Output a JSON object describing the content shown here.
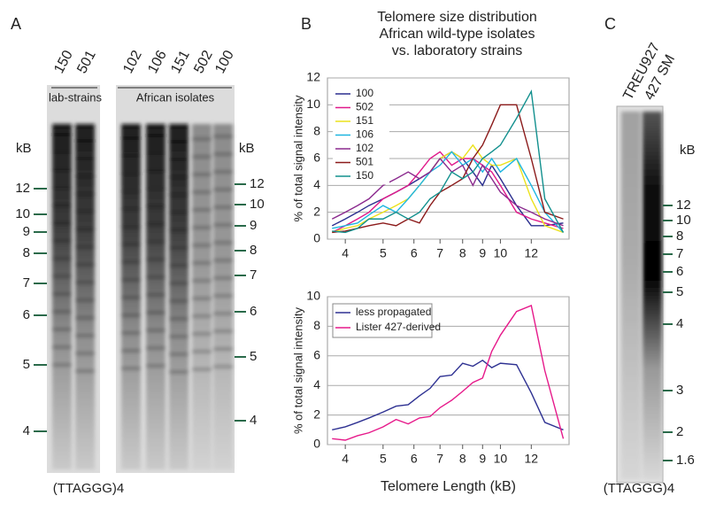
{
  "panel_labels": [
    "A",
    "B",
    "C"
  ],
  "gel_a": {
    "lanes": [
      "150",
      "501",
      "102",
      "106",
      "151",
      "502",
      "100"
    ],
    "groups": [
      "lab-strains",
      "African isolates"
    ],
    "unit_left": "kB",
    "unit_right": "kB",
    "markers_left": [
      12,
      10,
      9,
      8,
      7,
      6,
      5,
      4
    ],
    "markers_right": [
      12,
      10,
      9,
      8,
      7,
      6,
      5,
      4
    ],
    "probe": "(TTAGGG)4"
  },
  "gel_c": {
    "lanes": [
      "TREU927",
      "427 SM"
    ],
    "unit": "kB",
    "markers": [
      12,
      10,
      8,
      7,
      6,
      5,
      4,
      3,
      2,
      1.6
    ],
    "probe": "(TTAGGG)4"
  },
  "chart_data": [
    {
      "type": "line",
      "title": [
        "Telomere size distribution",
        "African wild-type isolates",
        "vs. laboratory strains"
      ],
      "y_label": "% of total signal intensity",
      "x": [
        3.7,
        4,
        4.3,
        4.6,
        5,
        5.4,
        5.8,
        6.2,
        6.6,
        7,
        7.5,
        8,
        8.5,
        9,
        9.5,
        10,
        11,
        12,
        13,
        14.5
      ],
      "xlim": [
        3.6,
        15
      ],
      "xscale": "log",
      "xticks": [
        4,
        5,
        6,
        7,
        8,
        9,
        10,
        12
      ],
      "ylim": [
        0,
        12
      ],
      "yticks": [
        0,
        2,
        4,
        6,
        8,
        10,
        12
      ],
      "grid": true,
      "legend": "upper left",
      "series": [
        {
          "name": "100",
          "color": "#2b2f8f",
          "values": [
            1,
            1.5,
            2,
            2.5,
            3,
            3.5,
            4,
            4.5,
            5,
            6,
            6.5,
            6,
            5,
            4,
            5.5,
            4.5,
            2.5,
            1,
            1,
            1.2
          ]
        },
        {
          "name": "502",
          "color": "#e0198a",
          "values": [
            0.5,
            1,
            1.5,
            2,
            3,
            3.5,
            4,
            5,
            6,
            6.5,
            5.5,
            6,
            6,
            5.5,
            5,
            4,
            2,
            1.5,
            1.2,
            0.8
          ]
        },
        {
          "name": "151",
          "color": "#ece21c",
          "values": [
            0.5,
            0.8,
            1,
            1.5,
            2,
            2.5,
            3,
            4,
            5,
            6,
            6.5,
            6,
            7,
            6,
            5.5,
            5.5,
            6,
            3,
            1,
            0.5
          ]
        },
        {
          "name": "106",
          "color": "#1fb6e0",
          "values": [
            0.8,
            1,
            1.2,
            1.8,
            2.5,
            2,
            3,
            4,
            5,
            5.5,
            6.5,
            5.5,
            6,
            5,
            6,
            5,
            6,
            4,
            2,
            0.5
          ]
        },
        {
          "name": "102",
          "color": "#8b2a8e",
          "values": [
            1.5,
            2,
            2.5,
            3,
            4,
            4.5,
            5,
            4.5,
            5,
            6,
            5,
            5.5,
            4,
            5.5,
            4.5,
            3.5,
            2.5,
            2,
            1.5,
            1
          ]
        },
        {
          "name": "501",
          "color": "#8b1a1a",
          "values": [
            0.5,
            0.6,
            0.8,
            1,
            1.2,
            1,
            1.5,
            1.2,
            2.5,
            3.5,
            4,
            4.5,
            6,
            7,
            8.5,
            10,
            10,
            6,
            2,
            1.5
          ]
        },
        {
          "name": "150",
          "color": "#12908e",
          "values": [
            0.6,
            0.5,
            0.8,
            1.5,
            1.5,
            2,
            1.5,
            2,
            3,
            3.5,
            5,
            4.5,
            5,
            6,
            6.5,
            7,
            9,
            11,
            3,
            0.5
          ]
        }
      ]
    },
    {
      "type": "line",
      "y_label": "% of total signal intensity",
      "x_label": "Telomere Length (kB)",
      "x": [
        3.7,
        4,
        4.3,
        4.6,
        5,
        5.4,
        5.8,
        6.2,
        6.6,
        7,
        7.5,
        8,
        8.5,
        9,
        9.5,
        10,
        11,
        12,
        13,
        14.5
      ],
      "xlim": [
        3.6,
        15
      ],
      "xscale": "log",
      "xticks": [
        4,
        5,
        6,
        7,
        8,
        9,
        10,
        12
      ],
      "ylim": [
        0,
        10
      ],
      "yticks": [
        0,
        2,
        4,
        6,
        8,
        10
      ],
      "grid": true,
      "legend": "upper left",
      "series": [
        {
          "name": "less propagated",
          "color": "#2e3192",
          "values": [
            1,
            1.2,
            1.5,
            1.8,
            2.2,
            2.6,
            2.7,
            3.3,
            3.8,
            4.6,
            4.7,
            5.5,
            5.3,
            5.7,
            5.2,
            5.5,
            5.4,
            3.5,
            1.5,
            1
          ]
        },
        {
          "name": "Lister 427-derived",
          "color": "#e6198a",
          "values": [
            0.4,
            0.3,
            0.6,
            0.8,
            1.2,
            1.7,
            1.4,
            1.8,
            1.9,
            2.5,
            3,
            3.6,
            4.2,
            4.5,
            6.3,
            7.4,
            9,
            9.4,
            5,
            0.4
          ]
        }
      ]
    }
  ]
}
